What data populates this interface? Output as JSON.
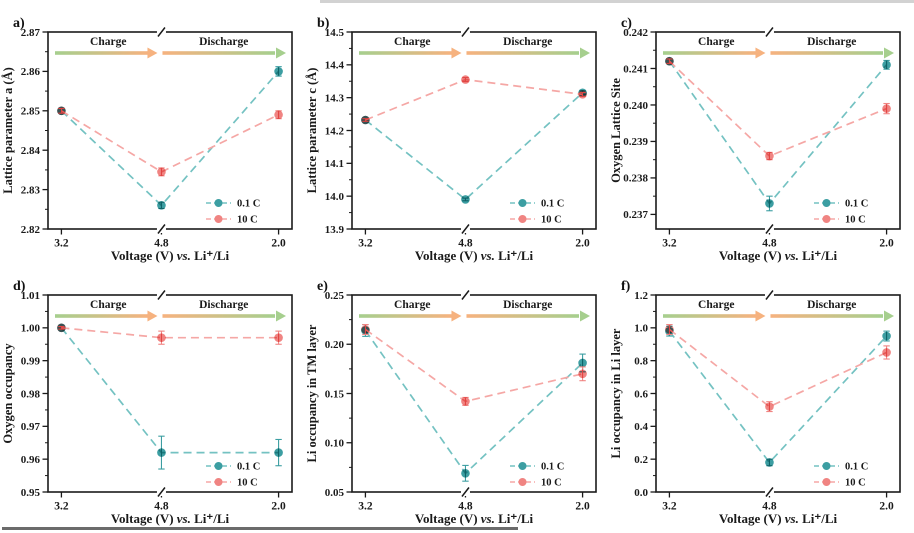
{
  "page": {
    "background_color": "#ffffff",
    "top_edge_artifact_color": "#d2d2d2",
    "bottom_edge_artifact_color": "#6b6b6b"
  },
  "figure": {
    "xlabel": "Voltage (V) vs. Li⁺/Li",
    "xlabel_parts": {
      "pre": "Voltage (V) ",
      "italic": "vs.",
      "post": " Li⁺/Li"
    },
    "x_categories": [
      "3.2",
      "4.8",
      "2.0"
    ],
    "arrow_labels": {
      "charge": "Charge",
      "discharge": "Discharge"
    },
    "legend": [
      "0.1 C",
      "10 C"
    ],
    "colors": {
      "teal_marker": "#3C9EA2",
      "teal_line": "#74C2C2",
      "pink_marker": "#F08482",
      "pink_line": "#F5A7A5",
      "arrow_green": "#A6CF8E",
      "arrow_orange": "#F6B27F",
      "axis_black": "#1a1a1a"
    }
  },
  "chart_data": [
    {
      "panel": "a)",
      "type": "line",
      "ylabel": "Lattice parameter a (Å)",
      "xlabel": "Voltage (V) vs. Li⁺/Li",
      "x_categories": [
        "3.2",
        "4.8",
        "2.0"
      ],
      "ylim": [
        2.82,
        2.87
      ],
      "yticks": [
        2.82,
        2.83,
        2.84,
        2.85,
        2.86,
        2.87
      ],
      "ytick_labels": [
        "2.82",
        "2.83",
        "2.84",
        "2.85",
        "2.86",
        "2.87"
      ],
      "legend_position": "bottom-right",
      "grid": false,
      "series": [
        {
          "name": "0.1 C",
          "color": "#3C9EA2",
          "values": [
            2.85,
            2.826,
            2.86
          ],
          "errors": [
            0.0006,
            0.0008,
            0.0012
          ]
        },
        {
          "name": "10 C",
          "color": "#F08482",
          "values": [
            2.85,
            2.8345,
            2.849
          ],
          "errors": [
            0.0006,
            0.001,
            0.001
          ]
        }
      ]
    },
    {
      "panel": "b)",
      "type": "line",
      "ylabel": "Lattice parameter c (Å)",
      "xlabel": "Voltage (V) vs. Li⁺/Li",
      "x_categories": [
        "3.2",
        "4.8",
        "2.0"
      ],
      "ylim": [
        13.9,
        14.5
      ],
      "yticks": [
        13.9,
        14.0,
        14.1,
        14.2,
        14.3,
        14.4,
        14.5
      ],
      "ytick_labels": [
        "13.9",
        "14.0",
        "14.1",
        "14.2",
        "14.3",
        "14.4",
        "14.5"
      ],
      "legend_position": "bottom-right",
      "grid": false,
      "series": [
        {
          "name": "0.1 C",
          "color": "#3C9EA2",
          "values": [
            14.232,
            13.99,
            14.315
          ],
          "errors": [
            0.004,
            0.004,
            0.006
          ]
        },
        {
          "name": "10 C",
          "color": "#F08482",
          "values": [
            14.232,
            14.355,
            14.31
          ],
          "errors": [
            0.004,
            0.006,
            0.006
          ]
        }
      ]
    },
    {
      "panel": "c)",
      "type": "line",
      "ylabel": "Oxygen Lattice Site",
      "xlabel": "Voltage (V) vs. Li⁺/Li",
      "x_categories": [
        "3.2",
        "4.8",
        "2.0"
      ],
      "ylim": [
        0.2366,
        0.242
      ],
      "yticks": [
        0.237,
        0.238,
        0.239,
        0.24,
        0.241,
        0.242
      ],
      "ytick_labels": [
        "0.237",
        "0.238",
        "0.239",
        "0.240",
        "0.241",
        "0.242"
      ],
      "legend_position": "bottom-right",
      "grid": false,
      "series": [
        {
          "name": "0.1 C",
          "color": "#3C9EA2",
          "values": [
            0.2412,
            0.2373,
            0.2411
          ],
          "errors": [
            6e-05,
            0.0002,
            0.00012
          ]
        },
        {
          "name": "10 C",
          "color": "#F08482",
          "values": [
            0.2412,
            0.2386,
            0.2399
          ],
          "errors": [
            6e-05,
            0.0001,
            0.00014
          ]
        }
      ]
    },
    {
      "panel": "d)",
      "type": "line",
      "ylabel": "Oxygen occupancy",
      "xlabel": "Voltage (V) vs. Li⁺/Li",
      "x_categories": [
        "3.2",
        "4.8",
        "2.0"
      ],
      "ylim": [
        0.95,
        1.01
      ],
      "yticks": [
        0.95,
        0.96,
        0.97,
        0.98,
        0.99,
        1.0,
        1.01
      ],
      "ytick_labels": [
        "0.95",
        "0.96",
        "0.97",
        "0.98",
        "0.99",
        "1.00",
        "1.01"
      ],
      "legend_position": "bottom-right",
      "grid": false,
      "series": [
        {
          "name": "0.1 C",
          "color": "#3C9EA2",
          "values": [
            1.0,
            0.962,
            0.962
          ],
          "errors": [
            0.0004,
            0.005,
            0.004
          ]
        },
        {
          "name": "10 C",
          "color": "#F08482",
          "values": [
            1.0,
            0.997,
            0.997
          ],
          "errors": [
            0.0004,
            0.002,
            0.002
          ]
        }
      ]
    },
    {
      "panel": "e)",
      "type": "line",
      "ylabel": "Li occupancy in TM layer",
      "xlabel": "Voltage (V) vs. Li⁺/Li",
      "x_categories": [
        "3.2",
        "4.8",
        "2.0"
      ],
      "ylim": [
        0.05,
        0.25
      ],
      "yticks": [
        0.05,
        0.1,
        0.15,
        0.2,
        0.25
      ],
      "ytick_labels": [
        "0.05",
        "0.10",
        "0.15",
        "0.20",
        "0.25"
      ],
      "legend_position": "bottom-right",
      "grid": false,
      "series": [
        {
          "name": "0.1 C",
          "color": "#3C9EA2",
          "values": [
            0.214,
            0.069,
            0.181
          ],
          "errors": [
            0.006,
            0.008,
            0.009
          ]
        },
        {
          "name": "10 C",
          "color": "#F08482",
          "values": [
            0.215,
            0.142,
            0.17
          ],
          "errors": [
            0.005,
            0.004,
            0.007
          ]
        }
      ]
    },
    {
      "panel": "f)",
      "type": "line",
      "ylabel": "Li occupancy in Li layer",
      "xlabel": "Voltage (V) vs. Li⁺/Li",
      "x_categories": [
        "3.2",
        "4.8",
        "2.0"
      ],
      "ylim": [
        0.0,
        1.2
      ],
      "yticks": [
        0.0,
        0.2,
        0.4,
        0.6,
        0.8,
        1.0,
        1.2
      ],
      "ytick_labels": [
        "0.0",
        "0.2",
        "0.4",
        "0.6",
        "0.8",
        "1.0",
        "1.2"
      ],
      "legend_position": "bottom-right",
      "grid": false,
      "series": [
        {
          "name": "0.1 C",
          "color": "#3C9EA2",
          "values": [
            0.98,
            0.18,
            0.95
          ],
          "errors": [
            0.03,
            0.02,
            0.03
          ]
        },
        {
          "name": "10 C",
          "color": "#F08482",
          "values": [
            0.99,
            0.52,
            0.85
          ],
          "errors": [
            0.03,
            0.03,
            0.04
          ]
        }
      ]
    }
  ]
}
